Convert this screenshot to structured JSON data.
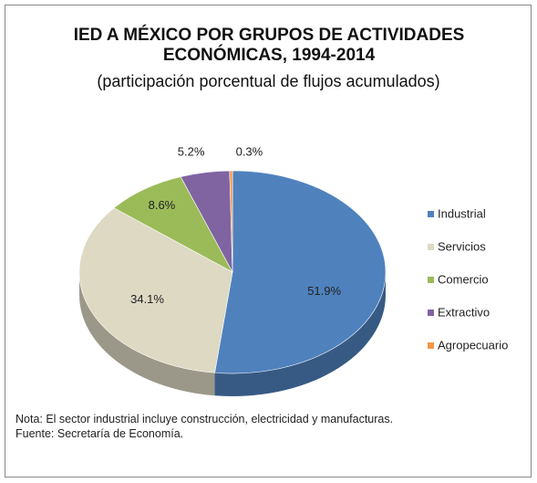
{
  "chart_data": {
    "type": "pie",
    "title": "IED A MÉXICO POR GRUPOS DE ACTIVIDADES ECONÓMICAS, 1994-2014",
    "subtitle": "(participación porcentual de flujos acumulados)",
    "categories": [
      "Industrial",
      "Servicios",
      "Comercio",
      "Extractivo",
      "Agropecuario"
    ],
    "values": [
      51.9,
      34.1,
      8.6,
      5.2,
      0.3
    ],
    "value_labels": [
      "51.9%",
      "34.1%",
      "8.6%",
      "5.2%",
      "0.3%"
    ],
    "colors": [
      "#4f81bd",
      "#ddd9c3",
      "#9bbb59",
      "#8064a2",
      "#f79646"
    ],
    "legend": "right",
    "notes": [
      "Nota: El sector industrial incluye construcción, electricidad y manufacturas.",
      "Fuente: Secretaría de Economía."
    ]
  }
}
